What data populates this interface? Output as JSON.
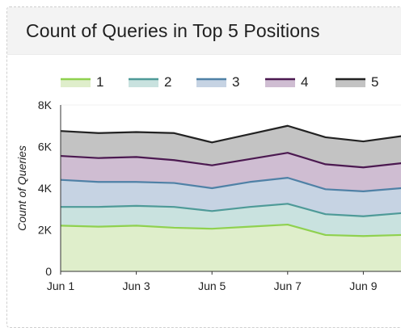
{
  "card": {
    "title": "Count of Queries in Top 5 Positions"
  },
  "chart_data": {
    "type": "area",
    "stacked": true,
    "title": "Count of Queries in Top 5 Positions",
    "xlabel": "",
    "ylabel": "Count of Queries",
    "ylim": [
      0,
      8000
    ],
    "yticks": [
      0,
      2000,
      4000,
      6000,
      8000
    ],
    "ytick_labels": [
      "0",
      "2K",
      "4K",
      "6K",
      "8K"
    ],
    "x": [
      "Jun 1",
      "Jun 2",
      "Jun 3",
      "Jun 4",
      "Jun 5",
      "Jun 6",
      "Jun 7",
      "Jun 8",
      "Jun 9",
      "Jun 10"
    ],
    "xtick_labels": [
      "Jun 1",
      "Jun 3",
      "Jun 5",
      "Jun 7",
      "Jun 9"
    ],
    "legend_position": "top",
    "series": [
      {
        "name": "1",
        "color": "#8fd14f",
        "fill": "#dfeecb",
        "values": [
          2200,
          2150,
          2200,
          2100,
          2050,
          2150,
          2250,
          1750,
          1700,
          1750
        ]
      },
      {
        "name": "2",
        "color": "#4e9a98",
        "fill": "#c9e2df",
        "values": [
          900,
          950,
          950,
          1000,
          850,
          950,
          1000,
          1000,
          950,
          1050
        ]
      },
      {
        "name": "3",
        "color": "#4f81a6",
        "fill": "#c6d3e3",
        "values": [
          1300,
          1200,
          1150,
          1150,
          1100,
          1200,
          1250,
          1200,
          1200,
          1200
        ]
      },
      {
        "name": "4",
        "color": "#4b1950",
        "fill": "#cfbdd2",
        "values": [
          1150,
          1150,
          1200,
          1100,
          1100,
          1100,
          1200,
          1200,
          1150,
          1200
        ]
      },
      {
        "name": "5",
        "color": "#222222",
        "fill": "#c3c3c3",
        "values": [
          1200,
          1200,
          1200,
          1300,
          1100,
          1200,
          1300,
          1300,
          1250,
          1300
        ]
      }
    ]
  }
}
